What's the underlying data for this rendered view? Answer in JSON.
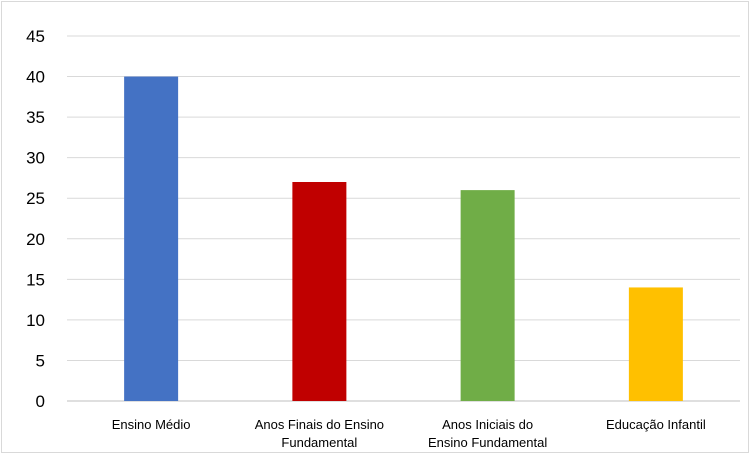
{
  "chart_data": {
    "type": "bar",
    "title": "",
    "xlabel": "",
    "ylabel": "",
    "categories": [
      [
        "Ensino Médio"
      ],
      [
        "Anos Finais do Ensino",
        "Fundamental"
      ],
      [
        "Anos Iniciais do",
        "Ensino Fundamental"
      ],
      [
        "Educação Infantil"
      ]
    ],
    "values": [
      40,
      27,
      26,
      14
    ],
    "colors": [
      "#4472c4",
      "#c00000",
      "#70ad47",
      "#ffc000"
    ],
    "ylim": [
      0,
      45
    ],
    "yticks": [
      0,
      5,
      10,
      15,
      20,
      25,
      30,
      35,
      40,
      45
    ],
    "grid": true,
    "legend": "none"
  }
}
